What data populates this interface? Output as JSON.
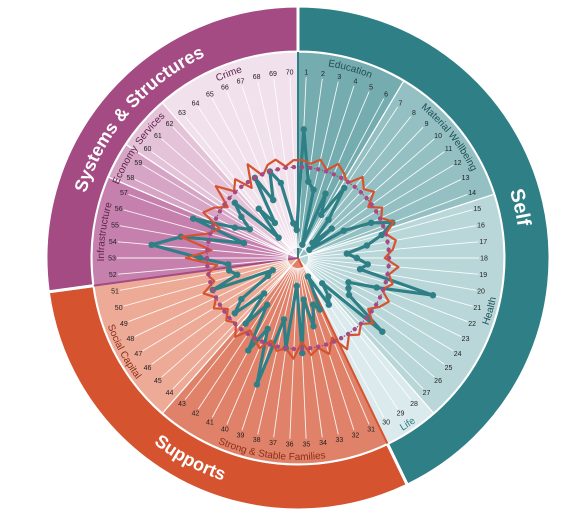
{
  "colors": {
    "self": "#2f7f86",
    "supports": "#d6532f",
    "systems": "#a44b84",
    "score_line": "#2f7f86",
    "benchmark_line": "#d6532f",
    "benchmark_markers": "#a44b84"
  },
  "chart_data": {
    "type": "radar",
    "n_indicators": 70,
    "groups": [
      {
        "name": "Self",
        "color": "#2f7f86",
        "start": 1,
        "end": 30
      },
      {
        "name": "Supports",
        "color": "#d6532f",
        "start": 31,
        "end": 51
      },
      {
        "name": "Systems & Structures",
        "color": "#a44b84",
        "start": 52,
        "end": 70
      }
    ],
    "subgroups": [
      {
        "name": "Education",
        "group": "Self",
        "start": 1,
        "end": 6,
        "fill": "#74acb0"
      },
      {
        "name": "Material Wellbeing",
        "group": "Self",
        "start": 7,
        "end": 14,
        "fill": "#94c0c3"
      },
      {
        "name": "Health",
        "group": "Self",
        "start": 15,
        "end": 27,
        "fill": "#b9d7d9"
      },
      {
        "name": "Life",
        "group": "Self",
        "start": 28,
        "end": 30,
        "fill": "#dbeaec"
      },
      {
        "name": "Strong & Stable Families",
        "group": "Supports",
        "start": 31,
        "end": 43,
        "fill": "#e0826a"
      },
      {
        "name": "Social Capital",
        "group": "Supports",
        "start": 44,
        "end": 51,
        "fill": "#edaa96"
      },
      {
        "name": "Infrastructure",
        "group": "Systems & Structures",
        "start": 52,
        "end": 57,
        "fill": "#c580ae"
      },
      {
        "name": "Economy",
        "group": "Systems & Structures",
        "start": 58,
        "end": 59,
        "fill": "#d6a5c5"
      },
      {
        "name": "Services",
        "group": "Systems & Structures",
        "start": 60,
        "end": 62,
        "fill": "#e4c3d9"
      },
      {
        "name": "Crime",
        "group": "Systems & Structures",
        "start": 63,
        "end": 70,
        "fill": "#f1e1ec"
      }
    ],
    "indicators": [
      "1",
      "2",
      "3",
      "4",
      "5",
      "6",
      "7",
      "8",
      "9",
      "10",
      "11",
      "12",
      "13",
      "14",
      "15",
      "16",
      "17",
      "18",
      "19",
      "20",
      "21",
      "22",
      "23",
      "24",
      "25",
      "26",
      "27",
      "28",
      "29",
      "30",
      "31",
      "32",
      "33",
      "34",
      "35",
      "36",
      "37",
      "38",
      "39",
      "40",
      "41",
      "42",
      "43",
      "44",
      "45",
      "46",
      "47",
      "48",
      "49",
      "50",
      "51",
      "52",
      "53",
      "54",
      "55",
      "56",
      "57",
      "58",
      "59",
      "60",
      "61",
      "62",
      "63",
      "64",
      "65",
      "66",
      "67",
      "68",
      "69",
      "70"
    ],
    "series": [
      {
        "color": "#2f7f86",
        "values": [
          0.92,
          0.55,
          0.5,
          0.1,
          0.5,
          0.35,
          0.6,
          0.35,
          0.15,
          0.32,
          0.1,
          0.38,
          0.58,
          0.72,
          0.62,
          0.5,
          0.35,
          0.42,
          0.5,
          0.45,
          1.0,
          0.6,
          0.4,
          0.42,
          0.45,
          0.8,
          0.25,
          0.35,
          0.4,
          0.15,
          0.4,
          0.35,
          0.5,
          0.3,
          0.68,
          0.2,
          0.65,
          0.45,
          0.95,
          0.55,
          0.75,
          0.4,
          0.6,
          0.35,
          0.6,
          0.5,
          0.25,
          0.2,
          0.65,
          0.45,
          0.5,
          0.5,
          0.7,
          1.05,
          0.85,
          0.4,
          0.8,
          0.5,
          0.4,
          0.5,
          0.6,
          0.2,
          0.45,
          0.3,
          0.65,
          0.45,
          0.65,
          0.55,
          0.25,
          0.2
        ]
      },
      {
        "color": "#d6532f",
        "values": [
          0.7,
          0.68,
          0.72,
          0.66,
          0.73,
          0.69,
          0.64,
          0.74,
          0.68,
          0.72,
          0.62,
          0.7,
          0.66,
          0.73,
          0.65,
          0.71,
          0.68,
          0.62,
          0.72,
          0.66,
          0.7,
          0.64,
          0.72,
          0.68,
          0.62,
          0.71,
          0.65,
          0.7,
          0.66,
          0.74,
          0.62,
          0.72,
          0.66,
          0.7,
          0.6,
          0.72,
          0.65,
          0.68,
          0.62,
          0.7,
          0.66,
          0.62,
          0.72,
          0.64,
          0.68,
          0.62,
          0.7,
          0.65,
          0.72,
          0.62,
          0.66,
          0.58,
          0.8,
          0.62,
          0.85,
          0.66,
          0.6,
          0.75,
          0.7,
          0.62,
          0.78,
          0.66,
          0.72,
          0.6,
          0.76,
          0.64,
          0.7,
          0.72,
          0.66,
          0.7
        ]
      },
      {
        "color": "#a44b84",
        "values": [
          0.65,
          0.65,
          0.65,
          0.65,
          0.65,
          0.65,
          0.65,
          0.65,
          0.65,
          0.65,
          0.65,
          0.65,
          0.65,
          0.65,
          0.65,
          0.65,
          0.65,
          0.65,
          0.65,
          0.65,
          0.65,
          0.65,
          0.65,
          0.65,
          0.65,
          0.65,
          0.65,
          0.65,
          0.65,
          0.65,
          0.65,
          0.65,
          0.65,
          0.65,
          0.65,
          0.65,
          0.65,
          0.65,
          0.65,
          0.65,
          0.65,
          0.65,
          0.65,
          0.65,
          0.65,
          0.65,
          0.65,
          0.65,
          0.65,
          0.65,
          0.65,
          0.65,
          0.65,
          0.65,
          0.65,
          0.65,
          0.65,
          0.65,
          0.65,
          0.65,
          0.65,
          0.65,
          0.65,
          0.65,
          0.65,
          0.65,
          0.65,
          0.65,
          0.65,
          0.65
        ]
      }
    ],
    "grid": true,
    "legend": "none"
  }
}
